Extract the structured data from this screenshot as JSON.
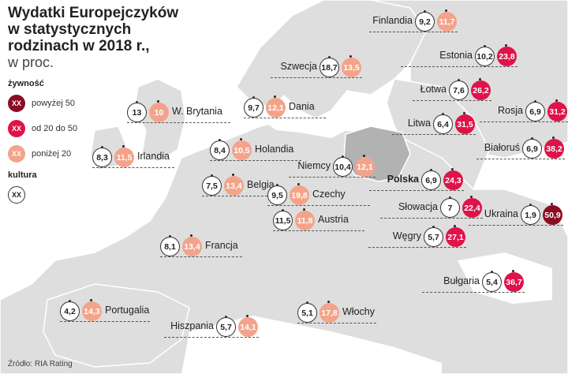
{
  "title": {
    "lines": [
      "Wydatki Europejczyków",
      "w statystycznych",
      "rodzinach w 2018 r.,"
    ],
    "unit": "w proc."
  },
  "legend": {
    "food_heading": "żywność",
    "food_items": [
      {
        "symbol": "XX",
        "label": "powyżej 50",
        "color": "#8b0d22"
      },
      {
        "symbol": "XX",
        "label": "od 20 do 50",
        "color": "#e0124a"
      },
      {
        "symbol": "XX",
        "label": "poniżej 20",
        "color": "#f4a38b"
      }
    ],
    "culture_heading": "kultura",
    "culture_symbol": "XX"
  },
  "source": "Źródło: RIA Rating",
  "colors": {
    "land": "#dedede",
    "poland": "#b2b2b2",
    "border": "#ffffff",
    "food_high": "#8b0d22",
    "food_mid": "#e0124a",
    "food_low": "#f4a38b"
  },
  "countries": [
    {
      "name": "Finlandia",
      "culture": "9,2",
      "food": "11,7",
      "food_level": "low"
    },
    {
      "name": "Estonia",
      "culture": "10,2",
      "food": "23,8",
      "food_level": "mid"
    },
    {
      "name": "Szwecja",
      "culture": "18,7",
      "food": "13,5",
      "food_level": "low"
    },
    {
      "name": "Łotwa",
      "culture": "7,6",
      "food": "26,2",
      "food_level": "mid"
    },
    {
      "name": "W. Brytania",
      "culture": "13",
      "food": "10",
      "food_level": "low"
    },
    {
      "name": "Dania",
      "culture": "9,7",
      "food": "12,1",
      "food_level": "low"
    },
    {
      "name": "Rosja",
      "culture": "6,9",
      "food": "31,2",
      "food_level": "mid"
    },
    {
      "name": "Litwa",
      "culture": "6,4",
      "food": "31,5",
      "food_level": "mid"
    },
    {
      "name": "Holandia",
      "culture": "8,4",
      "food": "10,5",
      "food_level": "low"
    },
    {
      "name": "Białoruś",
      "culture": "6,9",
      "food": "38,2",
      "food_level": "mid"
    },
    {
      "name": "Irlandia",
      "culture": "8,3",
      "food": "11,5",
      "food_level": "low"
    },
    {
      "name": "Niemcy",
      "culture": "10,4",
      "food": "12,1",
      "food_level": "low"
    },
    {
      "name": "Belgia",
      "culture": "7,5",
      "food": "13,4",
      "food_level": "low"
    },
    {
      "name": "Polska",
      "culture": "6,9",
      "food": "24,3",
      "food_level": "mid"
    },
    {
      "name": "Czechy",
      "culture": "9,5",
      "food": "19,8",
      "food_level": "low"
    },
    {
      "name": "Słowacja",
      "culture": "7",
      "food": "22,4",
      "food_level": "mid"
    },
    {
      "name": "Ukraina",
      "culture": "1,9",
      "food": "50,9",
      "food_level": "high"
    },
    {
      "name": "Austria",
      "culture": "11,5",
      "food": "11,8",
      "food_level": "low"
    },
    {
      "name": "Węgry",
      "culture": "5,7",
      "food": "27,1",
      "food_level": "mid"
    },
    {
      "name": "Francja",
      "culture": "8,1",
      "food": "13,4",
      "food_level": "low"
    },
    {
      "name": "Bułgaria",
      "culture": "5,4",
      "food": "36,7",
      "food_level": "mid"
    },
    {
      "name": "Portugalia",
      "culture": "4,2",
      "food": "14,3",
      "food_level": "low"
    },
    {
      "name": "Hiszpania",
      "culture": "5,7",
      "food": "14,1",
      "food_level": "low"
    },
    {
      "name": "Włochy",
      "culture": "5,1",
      "food": "17,8",
      "food_level": "low"
    }
  ]
}
